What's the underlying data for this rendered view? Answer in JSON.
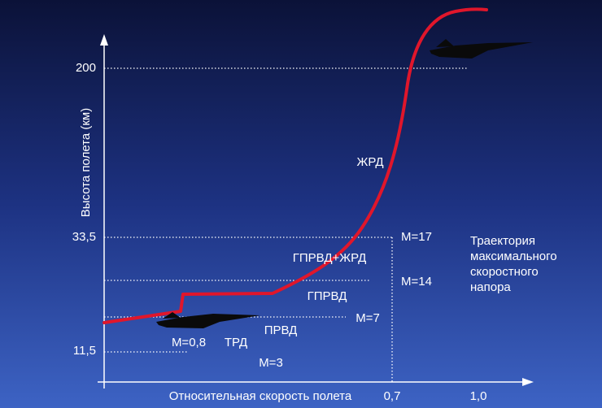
{
  "y_axis": {
    "label": "Высота полета (км)",
    "ticks": [
      "200",
      "33,5",
      "11,5"
    ]
  },
  "x_axis": {
    "label": "Относительная скорость полета",
    "ticks": [
      "0,7",
      "1,0"
    ]
  },
  "engine_labels": [
    "ЖРД",
    "ГПРВД+ЖРД",
    "ГПРВД",
    "ПРВД",
    "ТРД"
  ],
  "mach_labels": [
    "М=0,8",
    "М=3",
    "М=7",
    "М=14",
    "М=17"
  ],
  "legend": [
    "Траектория",
    "максимального",
    "скоростного",
    "напора"
  ]
}
